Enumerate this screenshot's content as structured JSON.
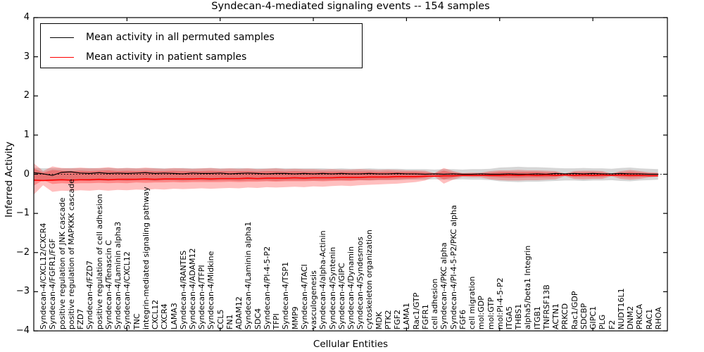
{
  "title": "Syndecan-4-mediated signaling events -- 154 samples",
  "axes": {
    "ylabel": "Inferred Activity",
    "xlabel": "Cellular Entities"
  },
  "legend": {
    "items": [
      {
        "label": "Mean activity in all permuted samples",
        "color": "#000000"
      },
      {
        "label": "Mean activity in patient samples",
        "color": "#ff0000"
      }
    ]
  },
  "chart_data": {
    "type": "line",
    "title": "Syndecan-4-mediated signaling events -- 154 samples",
    "xlabel": "Cellular Entities",
    "ylabel": "Inferred Activity",
    "ylim": [
      -4,
      4
    ],
    "yticks": [
      4,
      3,
      2,
      1,
      0,
      -1,
      -2,
      -3,
      -4
    ],
    "x_major_ticks": [
      10,
      20,
      30,
      40,
      50,
      60
    ],
    "grid": false,
    "legend_position": "upper left",
    "zero_line": true,
    "categories": [
      "Syndecan-4/CXCL12/CXCR4",
      "Syndecan-4/FGFR1/FGF",
      "positive regulation of JNK cascade",
      "positive regulation of MAPKKK cascade",
      "FZD7",
      "Syndecan-4/FZD7",
      "positive regulation of cell adhesion",
      "Syndecan-4/Tenascin C",
      "Syndecan-4/Laminin alpha3",
      "Syndecan-4/CXCL12",
      "TNC",
      "integrin-mediated signaling pathway",
      "CXCL12",
      "CXCR4",
      "LAMA3",
      "Syndecan-4/RANTES",
      "Syndecan-4/ADAM12",
      "Syndecan-4/TFPI",
      "Syndecan-4/Midkine",
      "CCL5",
      "FN1",
      "ADAM12",
      "Syndecan-4/Laminin alpha1",
      "SDC4",
      "Syndecan-4/PI-4-5-P2",
      "TFPI",
      "Syndecan-4/TSP1",
      "MMP9",
      "Syndecan-4/TACI",
      "vasculogenesis",
      "Syndecan-4/alpha-Actinin",
      "Syndecan-4/Syntenin",
      "Syndecan-4/GIPC",
      "Syndecan-4/Dynamin",
      "Syndecan-4/Syndesmos",
      "cytoskeleton organization",
      "MDK",
      "PTK2",
      "FGF2",
      "LAMA1",
      "Rac1/GTP",
      "FGFR1",
      "cell adhesion",
      "Syndecan-4/PKC alpha",
      "Syndecan-4/PI-4-5-P2/PKC alpha",
      "FGF6",
      "cell migration",
      "mol:GDP",
      "mol:GTP",
      "mol:PI-4-5-P2",
      "ITGA5",
      "THBS1",
      "alpha5/beta1 Integrin",
      "ITGB1",
      "TNFRSF13B",
      "ACTN1",
      "PRKCD",
      "Rac1/GDP",
      "SDCBP",
      "GIPC1",
      "PLG",
      "F2",
      "NUDT16L1",
      "DNM2",
      "PRKCA",
      "RAC1",
      "RHOA"
    ],
    "series": [
      {
        "name": "Mean activity in all permuted samples",
        "color": "#000000",
        "start_value": 0.04,
        "values": [
          0.01,
          -0.03,
          0.05,
          0.06,
          0.03,
          0.02,
          0.04,
          0.02,
          0.03,
          0.02,
          0.03,
          0.04,
          0.02,
          0.03,
          0.02,
          0.01,
          0.03,
          0.02,
          0.02,
          0.03,
          0.01,
          0.02,
          0.03,
          0.02,
          0.01,
          0.02,
          0.02,
          0.01,
          0.02,
          0.01,
          0.02,
          0.01,
          0.02,
          0.01,
          0.01,
          0.02,
          0.01,
          0.01,
          0.02,
          0.01,
          0.01,
          0.0,
          0.01,
          0.0,
          0.01,
          0.0,
          0.0,
          0.01,
          0.0,
          0.0,
          0.01,
          0.0,
          0.0,
          0.01,
          0.0,
          0.02,
          0.01,
          0.02,
          0.01,
          0.02,
          0.01,
          0.01,
          0.02,
          0.01,
          0.01,
          0.0,
          0.0
        ]
      },
      {
        "name": "Mean activity in patient samples",
        "color": "#ff0000",
        "start_value": -0.15,
        "values": [
          -0.16,
          -0.15,
          -0.14,
          -0.15,
          -0.14,
          -0.14,
          -0.13,
          -0.14,
          -0.13,
          -0.13,
          -0.13,
          -0.12,
          -0.13,
          -0.12,
          -0.12,
          -0.12,
          -0.12,
          -0.11,
          -0.12,
          -0.11,
          -0.11,
          -0.11,
          -0.1,
          -0.11,
          -0.1,
          -0.1,
          -0.1,
          -0.09,
          -0.1,
          -0.09,
          -0.09,
          -0.09,
          -0.08,
          -0.08,
          -0.08,
          -0.07,
          -0.07,
          -0.07,
          -0.06,
          -0.06,
          -0.06,
          -0.05,
          -0.05,
          -0.04,
          -0.04,
          -0.03,
          -0.03,
          -0.03,
          -0.03,
          -0.03,
          -0.02,
          -0.03,
          -0.02,
          -0.03,
          -0.02,
          -0.03,
          -0.02,
          -0.03,
          -0.02,
          -0.03,
          -0.02,
          -0.03,
          -0.02,
          -0.03,
          -0.03,
          -0.04,
          -0.04
        ]
      }
    ],
    "bands": [
      {
        "name": "permuted-samples-band",
        "color": "#808080",
        "opacity": 0.32,
        "start_cap": {
          "upper": 0.17,
          "lower": -0.18
        },
        "upper": [
          0.15,
          0.16,
          0.15,
          0.16,
          0.15,
          0.16,
          0.15,
          0.16,
          0.15,
          0.16,
          0.15,
          0.15,
          0.16,
          0.15,
          0.15,
          0.16,
          0.15,
          0.15,
          0.16,
          0.15,
          0.15,
          0.16,
          0.15,
          0.15,
          0.15,
          0.16,
          0.15,
          0.15,
          0.15,
          0.15,
          0.15,
          0.14,
          0.15,
          0.14,
          0.14,
          0.15,
          0.14,
          0.14,
          0.14,
          0.13,
          0.13,
          0.13,
          0.12,
          0.13,
          0.13,
          0.12,
          0.13,
          0.13,
          0.14,
          0.17,
          0.18,
          0.19,
          0.18,
          0.18,
          0.17,
          0.16,
          0.15,
          0.15,
          0.16,
          0.15,
          0.15,
          0.14,
          0.16,
          0.17,
          0.15,
          0.14,
          0.13
        ],
        "lower": [
          -0.16,
          -0.17,
          -0.16,
          -0.17,
          -0.16,
          -0.17,
          -0.16,
          -0.17,
          -0.16,
          -0.17,
          -0.16,
          -0.16,
          -0.17,
          -0.16,
          -0.16,
          -0.17,
          -0.16,
          -0.16,
          -0.17,
          -0.16,
          -0.16,
          -0.17,
          -0.16,
          -0.16,
          -0.16,
          -0.17,
          -0.16,
          -0.16,
          -0.16,
          -0.16,
          -0.16,
          -0.15,
          -0.16,
          -0.15,
          -0.15,
          -0.16,
          -0.15,
          -0.15,
          -0.15,
          -0.14,
          -0.14,
          -0.14,
          -0.13,
          -0.14,
          -0.14,
          -0.13,
          -0.14,
          -0.14,
          -0.15,
          -0.18,
          -0.19,
          -0.2,
          -0.19,
          -0.19,
          -0.18,
          -0.17,
          -0.16,
          -0.16,
          -0.17,
          -0.16,
          -0.16,
          -0.15,
          -0.17,
          -0.18,
          -0.16,
          -0.15,
          -0.14
        ]
      },
      {
        "name": "patient-samples-band-outer",
        "color": "#ff0000",
        "opacity": 0.25,
        "start_cap": {
          "upper": 0.28,
          "lower": -0.52
        },
        "upper": [
          0.08,
          0.2,
          0.16,
          0.15,
          0.17,
          0.15,
          0.16,
          0.18,
          0.15,
          0.16,
          0.15,
          0.17,
          0.15,
          0.14,
          0.16,
          0.15,
          0.14,
          0.15,
          0.16,
          0.14,
          0.15,
          0.14,
          0.15,
          0.13,
          0.14,
          0.15,
          0.13,
          0.14,
          0.13,
          0.13,
          0.12,
          0.13,
          0.12,
          0.12,
          0.13,
          0.12,
          0.11,
          0.12,
          0.11,
          0.1,
          0.1,
          0.09,
          0.03,
          0.16,
          0.08,
          0.03,
          0.04,
          0.04,
          0.08,
          0.1,
          0.1,
          0.11,
          0.1,
          0.1,
          0.09,
          0.08,
          0.02,
          0.08,
          0.09,
          0.09,
          0.08,
          0.02,
          0.08,
          0.11,
          0.08,
          0.05,
          0.04
        ],
        "lower": [
          -0.28,
          -0.45,
          -0.42,
          -0.43,
          -0.41,
          -0.42,
          -0.4,
          -0.42,
          -0.4,
          -0.41,
          -0.39,
          -0.4,
          -0.38,
          -0.39,
          -0.37,
          -0.38,
          -0.37,
          -0.36,
          -0.37,
          -0.36,
          -0.35,
          -0.36,
          -0.34,
          -0.35,
          -0.33,
          -0.34,
          -0.33,
          -0.32,
          -0.33,
          -0.31,
          -0.32,
          -0.3,
          -0.29,
          -0.3,
          -0.28,
          -0.27,
          -0.26,
          -0.25,
          -0.24,
          -0.22,
          -0.2,
          -0.16,
          -0.06,
          -0.24,
          -0.14,
          -0.07,
          -0.08,
          -0.08,
          -0.13,
          -0.15,
          -0.16,
          -0.16,
          -0.15,
          -0.15,
          -0.14,
          -0.13,
          -0.05,
          -0.12,
          -0.13,
          -0.12,
          -0.12,
          -0.05,
          -0.12,
          -0.14,
          -0.12,
          -0.08,
          -0.06
        ]
      },
      {
        "name": "patient-samples-band-inner",
        "color": "#ff0000",
        "opacity": 0.28,
        "start_cap": {
          "upper": 0.15,
          "lower": -0.29
        },
        "upper": [
          0.04,
          0.11,
          0.09,
          0.08,
          0.09,
          0.08,
          0.09,
          0.1,
          0.08,
          0.09,
          0.08,
          0.09,
          0.08,
          0.08,
          0.09,
          0.08,
          0.08,
          0.08,
          0.09,
          0.08,
          0.08,
          0.08,
          0.08,
          0.07,
          0.08,
          0.08,
          0.07,
          0.08,
          0.07,
          0.07,
          0.07,
          0.07,
          0.07,
          0.07,
          0.07,
          0.07,
          0.06,
          0.07,
          0.06,
          0.06,
          0.06,
          0.05,
          0.02,
          0.09,
          0.04,
          0.02,
          0.02,
          0.02,
          0.04,
          0.06,
          0.06,
          0.06,
          0.06,
          0.06,
          0.05,
          0.04,
          0.01,
          0.04,
          0.05,
          0.05,
          0.04,
          0.01,
          0.04,
          0.06,
          0.04,
          0.03,
          0.02
        ],
        "lower": [
          -0.15,
          -0.25,
          -0.23,
          -0.24,
          -0.23,
          -0.23,
          -0.22,
          -0.23,
          -0.22,
          -0.23,
          -0.21,
          -0.22,
          -0.21,
          -0.21,
          -0.2,
          -0.21,
          -0.2,
          -0.2,
          -0.2,
          -0.2,
          -0.19,
          -0.2,
          -0.19,
          -0.19,
          -0.18,
          -0.19,
          -0.18,
          -0.18,
          -0.18,
          -0.17,
          -0.18,
          -0.17,
          -0.16,
          -0.17,
          -0.15,
          -0.15,
          -0.14,
          -0.14,
          -0.13,
          -0.12,
          -0.11,
          -0.09,
          -0.03,
          -0.13,
          -0.08,
          -0.04,
          -0.04,
          -0.04,
          -0.07,
          -0.08,
          -0.09,
          -0.09,
          -0.08,
          -0.08,
          -0.08,
          -0.07,
          -0.03,
          -0.07,
          -0.07,
          -0.07,
          -0.07,
          -0.03,
          -0.07,
          -0.08,
          -0.07,
          -0.04,
          -0.03
        ]
      }
    ]
  }
}
